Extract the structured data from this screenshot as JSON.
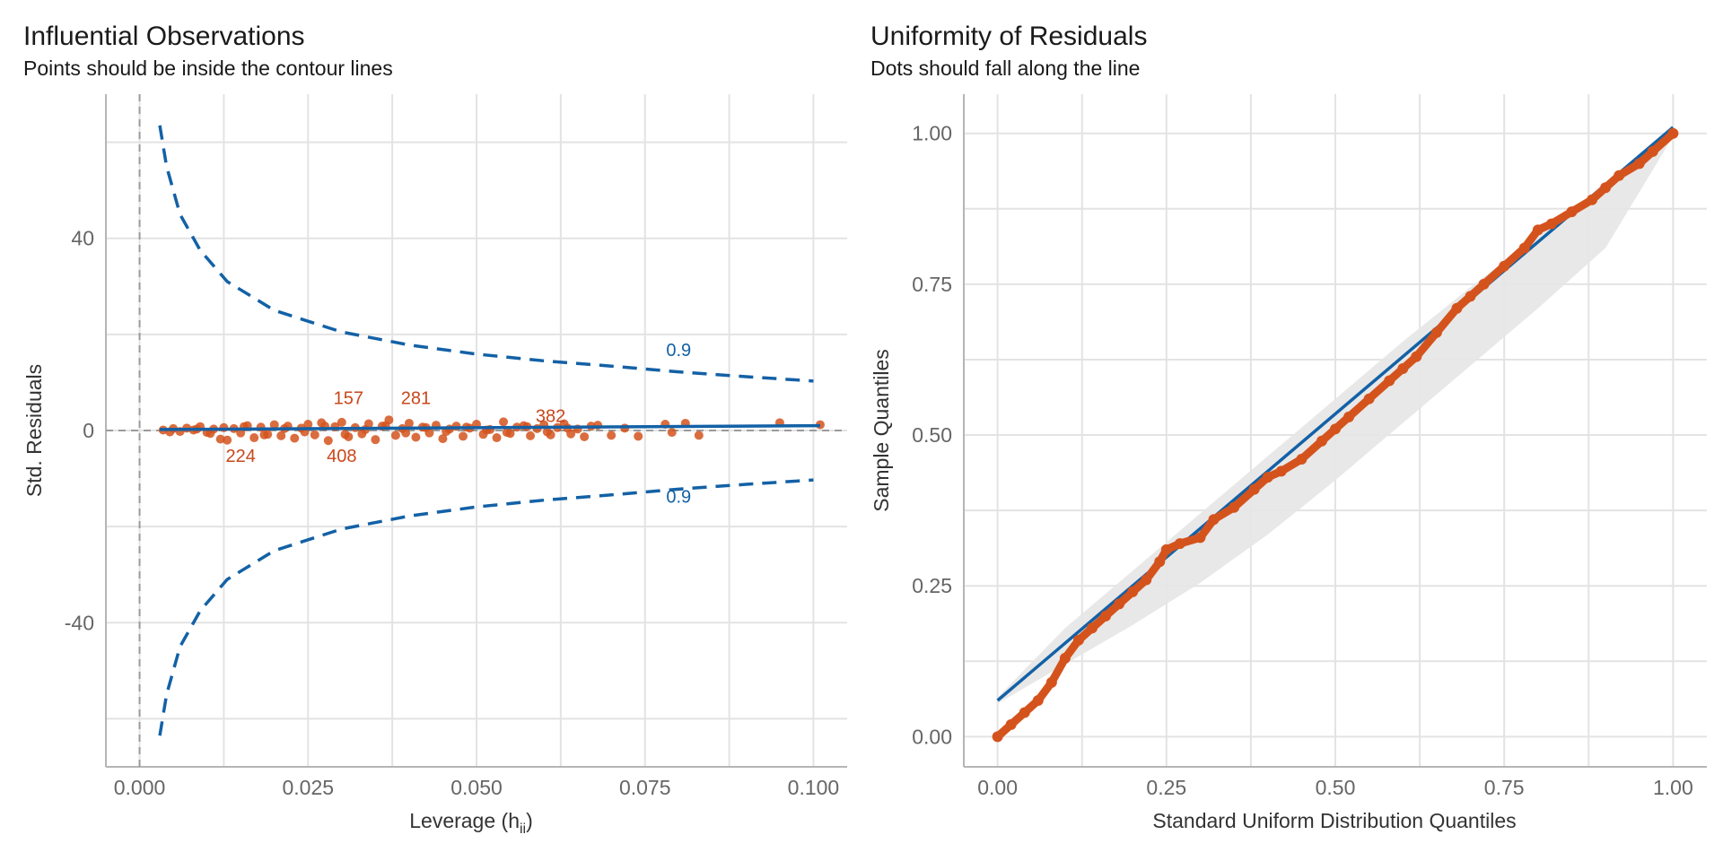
{
  "colors": {
    "blue": "#1361a6",
    "orange": "#d4531d",
    "band": "#e6e6e6",
    "grid": "#e3e3e3"
  },
  "chart_data": [
    {
      "type": "scatter",
      "title": "Influential Observations",
      "subtitle": "Points should be inside the contour lines",
      "xlabel": "Leverage (h",
      "xlabel_sub": "ii",
      "xlabel_close": ")",
      "ylabel": "Std. Residuals",
      "xlim": [
        -0.005,
        0.105
      ],
      "ylim": [
        -70,
        70
      ],
      "xticks": [
        0.0,
        0.025,
        0.05,
        0.075,
        0.1
      ],
      "xtick_labels": [
        "0.000",
        "0.025",
        "0.050",
        "0.075",
        "0.100"
      ],
      "yticks": [
        -40,
        0,
        40
      ],
      "ytick_labels": [
        "-40",
        "0",
        "40"
      ],
      "reference_lines": {
        "vertical_x": 0,
        "horizontal_y": 0
      },
      "fit_line": {
        "x": [
          0.003,
          0.101
        ],
        "y": [
          0.2,
          1.0
        ]
      },
      "contours": {
        "label": "0.9",
        "upper": {
          "x": [
            0.003,
            0.004,
            0.006,
            0.009,
            0.013,
            0.02,
            0.03,
            0.04,
            0.05,
            0.06,
            0.07,
            0.08,
            0.09,
            0.1
          ],
          "y": [
            63.5,
            55.0,
            45.0,
            37.5,
            31.0,
            25.0,
            20.5,
            17.8,
            15.9,
            14.5,
            13.4,
            12.2,
            11.2,
            10.3
          ]
        },
        "lower": {
          "x": [
            0.003,
            0.004,
            0.006,
            0.009,
            0.013,
            0.02,
            0.03,
            0.04,
            0.05,
            0.06,
            0.07,
            0.08,
            0.09,
            0.1
          ],
          "y": [
            -63.5,
            -55.0,
            -45.0,
            -37.5,
            -31.0,
            -25.0,
            -20.5,
            -17.8,
            -15.9,
            -14.5,
            -13.4,
            -12.2,
            -11.2,
            -10.3
          ]
        }
      },
      "points": {
        "x": [
          0.0035,
          0.0045,
          0.005,
          0.006,
          0.007,
          0.008,
          0.009,
          0.01,
          0.011,
          0.012,
          0.0125,
          0.013,
          0.014,
          0.015,
          0.016,
          0.017,
          0.018,
          0.019,
          0.02,
          0.021,
          0.022,
          0.023,
          0.024,
          0.025,
          0.026,
          0.027,
          0.028,
          0.029,
          0.03,
          0.031,
          0.032,
          0.033,
          0.034,
          0.035,
          0.036,
          0.037,
          0.038,
          0.039,
          0.04,
          0.041,
          0.042,
          0.043,
          0.044,
          0.045,
          0.046,
          0.047,
          0.048,
          0.049,
          0.05,
          0.051,
          0.052,
          0.053,
          0.054,
          0.055,
          0.056,
          0.057,
          0.058,
          0.059,
          0.06,
          0.061,
          0.062,
          0.063,
          0.064,
          0.065,
          0.066,
          0.067,
          0.068,
          0.07,
          0.072,
          0.074,
          0.078,
          0.079,
          0.081,
          0.083,
          0.095,
          0.101,
          0.0085,
          0.0105,
          0.0155,
          0.0185,
          0.0215,
          0.0245,
          0.0275,
          0.0305,
          0.0335,
          0.0365,
          0.0395,
          0.0425,
          0.0455,
          0.0485,
          0.0515,
          0.0545,
          0.0575,
          0.0605,
          0.0635
        ],
        "y": [
          0.1,
          -0.3,
          0.4,
          -0.2,
          0.5,
          0.1,
          0.8,
          -0.4,
          0.3,
          -1.8,
          0.6,
          -2.0,
          0.4,
          -0.5,
          1.0,
          -1.5,
          0.7,
          -0.8,
          1.2,
          -1.1,
          0.9,
          -1.6,
          0.5,
          1.3,
          -0.9,
          1.6,
          -2.1,
          0.8,
          1.7,
          -1.3,
          0.6,
          -0.7,
          1.4,
          -1.9,
          0.9,
          2.2,
          -1.0,
          0.4,
          1.5,
          -1.4,
          0.7,
          -0.5,
          1.1,
          -1.7,
          0.3,
          0.9,
          -1.2,
          0.5,
          1.3,
          -0.8,
          0.2,
          -1.5,
          1.8,
          -0.6,
          0.7,
          1.0,
          -1.1,
          0.4,
          1.2,
          -0.9,
          0.6,
          1.4,
          -0.7,
          0.3,
          -1.3,
          0.9,
          1.1,
          -1.0,
          0.5,
          -1.2,
          1.3,
          -0.4,
          1.5,
          -1.0,
          1.6,
          1.2,
          0.3,
          -0.6,
          0.8,
          -0.9,
          0.4,
          -0.3,
          0.9,
          -0.8,
          0.2,
          1.0,
          -0.5,
          0.6,
          -0.2,
          0.7,
          0.1,
          -0.4,
          0.8,
          -0.3,
          0.5
        ]
      },
      "point_labels": [
        {
          "text": "157",
          "x": 0.031,
          "y": 5.5
        },
        {
          "text": "281",
          "x": 0.041,
          "y": 5.5
        },
        {
          "text": "382",
          "x": 0.061,
          "y": 1.8
        },
        {
          "text": "224",
          "x": 0.015,
          "y": -6.5
        },
        {
          "text": "408",
          "x": 0.03,
          "y": -6.5
        }
      ],
      "contour_label_positions": [
        {
          "x": 0.08,
          "y": 15.5
        },
        {
          "x": 0.08,
          "y": -15.0
        }
      ]
    },
    {
      "type": "line",
      "title": "Uniformity of Residuals",
      "subtitle": "Dots should fall along the line",
      "xlabel": "Standard Uniform Distribution Quantiles",
      "ylabel": "Sample Quantiles",
      "xlim": [
        -0.05,
        1.05
      ],
      "ylim": [
        -0.05,
        1.065
      ],
      "xticks": [
        0.0,
        0.25,
        0.5,
        0.75,
        1.0
      ],
      "xtick_labels": [
        "0.00",
        "0.25",
        "0.50",
        "0.75",
        "1.00"
      ],
      "yticks": [
        0.0,
        0.25,
        0.5,
        0.75,
        1.0
      ],
      "ytick_labels": [
        "0.00",
        "0.25",
        "0.50",
        "0.75",
        "1.00"
      ],
      "reference_line": {
        "x": [
          0.0,
          1.0
        ],
        "y": [
          0.06,
          1.01
        ]
      },
      "band": {
        "x": [
          0.0,
          0.1,
          0.2,
          0.3,
          0.4,
          0.5,
          0.6,
          0.7,
          0.8,
          0.9,
          1.0
        ],
        "lower": [
          0.055,
          0.12,
          0.185,
          0.255,
          0.335,
          0.425,
          0.52,
          0.615,
          0.71,
          0.81,
          0.995
        ],
        "upper": [
          0.065,
          0.18,
          0.275,
          0.37,
          0.465,
          0.56,
          0.655,
          0.745,
          0.83,
          0.905,
          1.015
        ]
      },
      "points": {
        "x": [
          0.0,
          0.02,
          0.04,
          0.06,
          0.08,
          0.1,
          0.12,
          0.14,
          0.16,
          0.18,
          0.2,
          0.22,
          0.24,
          0.25,
          0.27,
          0.3,
          0.32,
          0.35,
          0.38,
          0.4,
          0.42,
          0.45,
          0.48,
          0.5,
          0.52,
          0.55,
          0.58,
          0.6,
          0.62,
          0.65,
          0.68,
          0.7,
          0.72,
          0.75,
          0.78,
          0.8,
          0.82,
          0.85,
          0.88,
          0.9,
          0.92,
          0.95,
          0.97,
          1.0
        ],
        "y": [
          0.0,
          0.02,
          0.04,
          0.06,
          0.09,
          0.13,
          0.16,
          0.18,
          0.2,
          0.22,
          0.24,
          0.26,
          0.29,
          0.31,
          0.32,
          0.33,
          0.36,
          0.38,
          0.41,
          0.43,
          0.44,
          0.46,
          0.49,
          0.51,
          0.53,
          0.56,
          0.59,
          0.61,
          0.63,
          0.67,
          0.71,
          0.73,
          0.75,
          0.78,
          0.81,
          0.84,
          0.85,
          0.87,
          0.89,
          0.91,
          0.93,
          0.95,
          0.97,
          1.0
        ]
      }
    }
  ]
}
